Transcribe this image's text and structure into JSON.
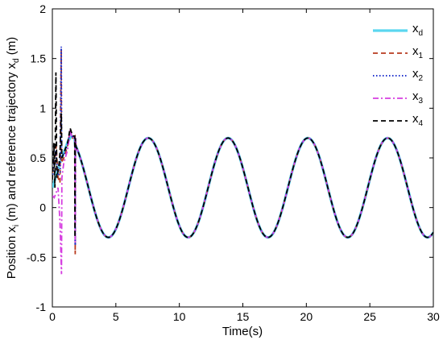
{
  "chart_data": {
    "type": "line",
    "title": "",
    "xlabel": "Time(s)",
    "ylabel": "Position x",
    "ylabel_sub": "i",
    "ylabel_mid": " (m) and reference trajectory x",
    "ylabel_sub2": "d",
    "ylabel_end": " (m)",
    "xlim": [
      0,
      30
    ],
    "ylim": [
      -1,
      2
    ],
    "xticks": [
      0,
      5,
      10,
      15,
      20,
      25,
      30
    ],
    "yticks": [
      -1,
      -0.5,
      0,
      0.5,
      1,
      1.5,
      2
    ],
    "grid": false,
    "legend_position": "top-right",
    "reference": {
      "offset": 0.2,
      "amplitude": 0.5,
      "period": 6.283,
      "phase": 0.3
    },
    "series": [
      {
        "name": "x",
        "sub": "d",
        "color": "#5bd7f0",
        "dash": "solid",
        "transient": [
          [
            0,
            0.2
          ],
          [
            0.3,
            0.32
          ],
          [
            0.6,
            0.45
          ],
          [
            0.9,
            0.55
          ],
          [
            1.2,
            0.66
          ],
          [
            1.5,
            0.72
          ],
          [
            1.75,
            0.7
          ]
        ]
      },
      {
        "name": "x",
        "sub": "1",
        "color": "#b83a1e",
        "dash": "dashed",
        "transient": [
          [
            0,
            0.35
          ],
          [
            0.15,
            0.45
          ],
          [
            0.3,
            0.62
          ],
          [
            0.45,
            0.3
          ],
          [
            0.6,
            0.25
          ],
          [
            0.7,
            1.6
          ],
          [
            0.72,
            0.45
          ],
          [
            0.9,
            0.5
          ],
          [
            1.2,
            0.62
          ],
          [
            1.4,
            0.78
          ],
          [
            1.6,
            0.7
          ],
          [
            1.78,
            0.72
          ],
          [
            1.8,
            -0.47
          ],
          [
            1.82,
            0.7
          ]
        ]
      },
      {
        "name": "x",
        "sub": "2",
        "color": "#2233cc",
        "dash": "dotted",
        "transient": [
          [
            0,
            0.3
          ],
          [
            0.12,
            0.42
          ],
          [
            0.25,
            0.58
          ],
          [
            0.45,
            0.32
          ],
          [
            0.62,
            0.35
          ],
          [
            0.7,
            1.62
          ],
          [
            0.73,
            0.5
          ],
          [
            0.95,
            0.55
          ],
          [
            1.2,
            0.64
          ],
          [
            1.4,
            0.77
          ],
          [
            1.6,
            0.7
          ],
          [
            1.78,
            0.72
          ],
          [
            1.8,
            -0.38
          ],
          [
            1.82,
            0.7
          ]
        ]
      },
      {
        "name": "x",
        "sub": "3",
        "color": "#d63ee0",
        "dash": "dashdot",
        "transient": [
          [
            0,
            0.12
          ],
          [
            0.15,
            0.1
          ],
          [
            0.3,
            0.15
          ],
          [
            0.45,
            0.2
          ],
          [
            0.6,
            -0.15
          ],
          [
            0.72,
            -0.67
          ],
          [
            0.75,
            0.3
          ],
          [
            0.9,
            0.45
          ],
          [
            1.2,
            0.58
          ],
          [
            1.4,
            0.76
          ],
          [
            1.6,
            0.7
          ],
          [
            1.78,
            0.72
          ],
          [
            1.8,
            -0.35
          ],
          [
            1.82,
            0.7
          ]
        ]
      },
      {
        "name": "x",
        "sub": "4",
        "color": "#000000",
        "dash": "dashed",
        "transient": [
          [
            0,
            0.28
          ],
          [
            0.12,
            0.65
          ],
          [
            0.2,
            0.2
          ],
          [
            0.28,
            1.36
          ],
          [
            0.35,
            0.3
          ],
          [
            0.5,
            0.4
          ],
          [
            0.6,
            0.55
          ],
          [
            0.7,
            0.95
          ],
          [
            0.75,
            0.5
          ],
          [
            0.9,
            0.55
          ],
          [
            1.2,
            0.65
          ],
          [
            1.4,
            0.8
          ],
          [
            1.6,
            0.72
          ],
          [
            1.76,
            0.72
          ],
          [
            1.78,
            -0.3
          ],
          [
            1.8,
            0.7
          ]
        ]
      }
    ]
  }
}
